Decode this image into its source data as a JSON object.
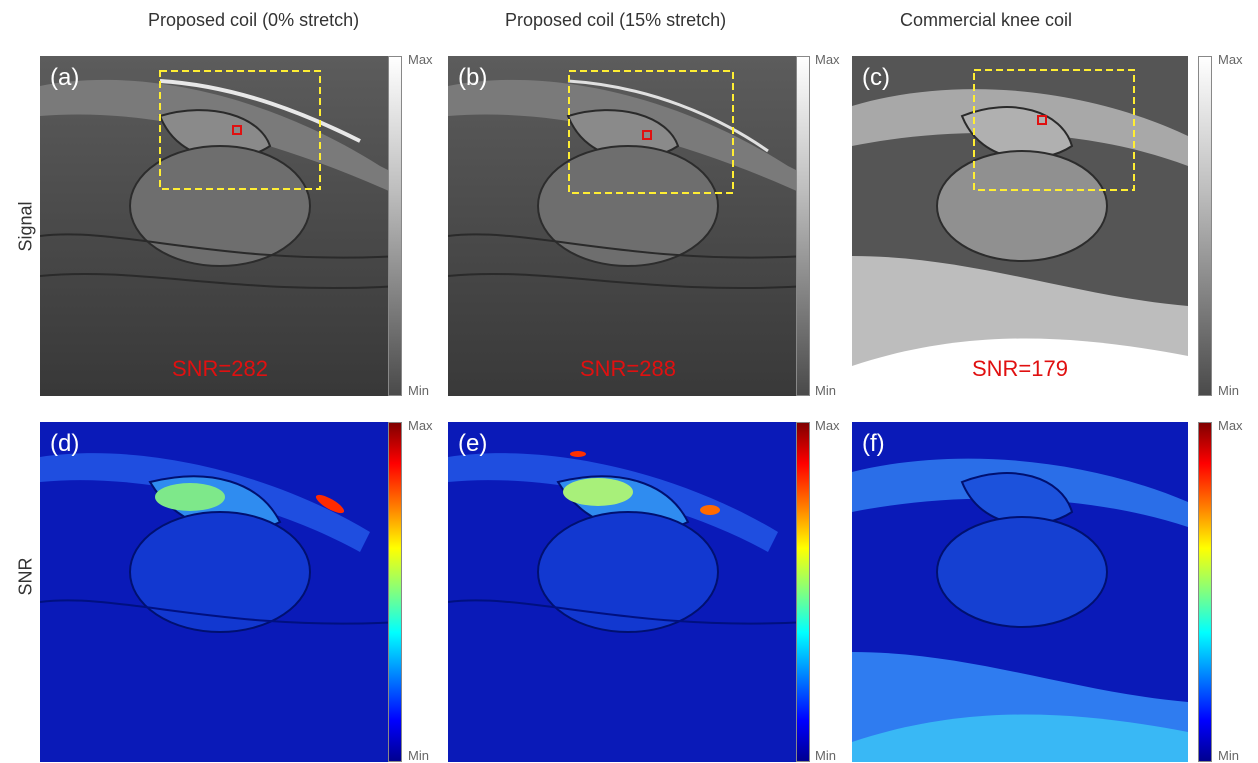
{
  "columns": [
    {
      "title": "Proposed coil (0% stretch)"
    },
    {
      "title": "Proposed coil (15% stretch)"
    },
    {
      "title": "Commercial knee coil"
    }
  ],
  "rows": [
    {
      "label": "Signal"
    },
    {
      "label": "SNR"
    }
  ],
  "signal_panels": [
    {
      "label": "(a)",
      "snr": "SNR=282"
    },
    {
      "label": "(b)",
      "snr": "SNR=288"
    },
    {
      "label": "(c)",
      "snr": "SNR=179"
    }
  ],
  "snr_panels": [
    {
      "label": "(d)"
    },
    {
      "label": "(e)"
    },
    {
      "label": "(f)"
    }
  ],
  "colorbar": {
    "max": "Max",
    "min": "Min"
  },
  "colors": {
    "roi_box": "#ffee33",
    "roi_square": "#e01010",
    "snr_text": "#e01010"
  }
}
